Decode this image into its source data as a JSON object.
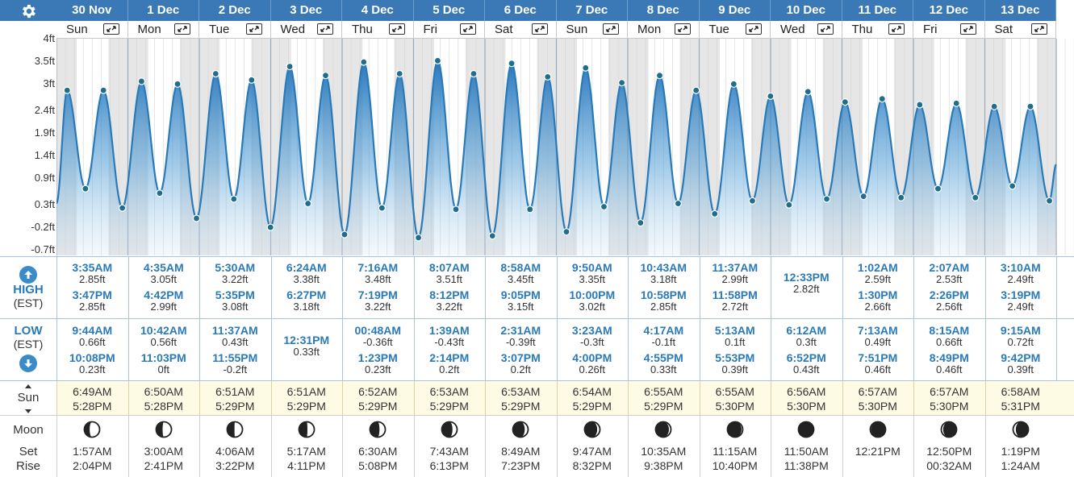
{
  "header": {
    "settings_icon": "gear-icon",
    "expand_icon": "expand-arrows-icon"
  },
  "days": [
    {
      "date": "30 Nov",
      "day": "Sun"
    },
    {
      "date": "1 Dec",
      "day": "Mon"
    },
    {
      "date": "2 Dec",
      "day": "Tue"
    },
    {
      "date": "3 Dec",
      "day": "Wed"
    },
    {
      "date": "4 Dec",
      "day": "Thu"
    },
    {
      "date": "5 Dec",
      "day": "Fri"
    },
    {
      "date": "6 Dec",
      "day": "Sat"
    },
    {
      "date": "7 Dec",
      "day": "Sun"
    },
    {
      "date": "8 Dec",
      "day": "Mon"
    },
    {
      "date": "9 Dec",
      "day": "Tue"
    },
    {
      "date": "10 Dec",
      "day": "Wed"
    },
    {
      "date": "11 Dec",
      "day": "Thu"
    },
    {
      "date": "12 Dec",
      "day": "Fri"
    },
    {
      "date": "13 Dec",
      "day": "Sat"
    }
  ],
  "chart_data": {
    "type": "area",
    "ylabel": "",
    "y_ticks": [
      "4ft",
      "3.5ft",
      "3ft",
      "2.4ft",
      "1.9ft",
      "1.4ft",
      "0.9ft",
      "0.3ft",
      "-0.2ft",
      "-0.7ft"
    ],
    "ylim": [
      -0.7,
      4.0
    ],
    "x_range_days": [
      0,
      14
    ],
    "series": [
      {
        "points": [
          {
            "day": 0,
            "t": "00:00",
            "h": 0.33
          },
          {
            "day": 0,
            "t": "03:35",
            "h": 2.85
          },
          {
            "day": 0,
            "t": "09:44",
            "h": 0.66
          },
          {
            "day": 0,
            "t": "15:47",
            "h": 2.85
          },
          {
            "day": 0,
            "t": "22:08",
            "h": 0.23
          },
          {
            "day": 1,
            "t": "04:35",
            "h": 3.05
          },
          {
            "day": 1,
            "t": "10:42",
            "h": 0.56
          },
          {
            "day": 1,
            "t": "16:42",
            "h": 2.99
          },
          {
            "day": 1,
            "t": "23:03",
            "h": 0.0
          },
          {
            "day": 2,
            "t": "05:30",
            "h": 3.22
          },
          {
            "day": 2,
            "t": "11:37",
            "h": 0.43
          },
          {
            "day": 2,
            "t": "17:35",
            "h": 3.08
          },
          {
            "day": 2,
            "t": "23:55",
            "h": -0.2
          },
          {
            "day": 3,
            "t": "06:24",
            "h": 3.38
          },
          {
            "day": 3,
            "t": "12:31",
            "h": 0.33
          },
          {
            "day": 3,
            "t": "18:27",
            "h": 3.18
          },
          {
            "day": 4,
            "t": "00:48",
            "h": -0.36
          },
          {
            "day": 4,
            "t": "07:16",
            "h": 3.48
          },
          {
            "day": 4,
            "t": "13:23",
            "h": 0.23
          },
          {
            "day": 4,
            "t": "19:19",
            "h": 3.22
          },
          {
            "day": 5,
            "t": "01:39",
            "h": -0.43
          },
          {
            "day": 5,
            "t": "08:07",
            "h": 3.51
          },
          {
            "day": 5,
            "t": "14:14",
            "h": 0.2
          },
          {
            "day": 5,
            "t": "20:12",
            "h": 3.22
          },
          {
            "day": 6,
            "t": "02:31",
            "h": -0.39
          },
          {
            "day": 6,
            "t": "08:58",
            "h": 3.45
          },
          {
            "day": 6,
            "t": "15:07",
            "h": 0.2
          },
          {
            "day": 6,
            "t": "21:05",
            "h": 3.15
          },
          {
            "day": 7,
            "t": "03:23",
            "h": -0.3
          },
          {
            "day": 7,
            "t": "09:50",
            "h": 3.35
          },
          {
            "day": 7,
            "t": "16:00",
            "h": 0.26
          },
          {
            "day": 7,
            "t": "22:00",
            "h": 3.02
          },
          {
            "day": 8,
            "t": "04:17",
            "h": -0.1
          },
          {
            "day": 8,
            "t": "10:43",
            "h": 3.18
          },
          {
            "day": 8,
            "t": "16:55",
            "h": 0.33
          },
          {
            "day": 8,
            "t": "22:58",
            "h": 2.85
          },
          {
            "day": 9,
            "t": "05:13",
            "h": 0.1
          },
          {
            "day": 9,
            "t": "11:37",
            "h": 2.99
          },
          {
            "day": 9,
            "t": "17:53",
            "h": 0.39
          },
          {
            "day": 9,
            "t": "23:58",
            "h": 2.72
          },
          {
            "day": 10,
            "t": "06:12",
            "h": 0.3
          },
          {
            "day": 10,
            "t": "12:33",
            "h": 2.82
          },
          {
            "day": 10,
            "t": "18:52",
            "h": 0.43
          },
          {
            "day": 11,
            "t": "01:02",
            "h": 2.59
          },
          {
            "day": 11,
            "t": "07:13",
            "h": 0.49
          },
          {
            "day": 11,
            "t": "13:30",
            "h": 2.66
          },
          {
            "day": 11,
            "t": "19:51",
            "h": 0.46
          },
          {
            "day": 12,
            "t": "02:07",
            "h": 2.53
          },
          {
            "day": 12,
            "t": "08:15",
            "h": 0.66
          },
          {
            "day": 12,
            "t": "14:26",
            "h": 2.56
          },
          {
            "day": 12,
            "t": "20:49",
            "h": 0.46
          },
          {
            "day": 13,
            "t": "03:10",
            "h": 2.49
          },
          {
            "day": 13,
            "t": "09:15",
            "h": 0.72
          },
          {
            "day": 13,
            "t": "15:19",
            "h": 2.49
          },
          {
            "day": 13,
            "t": "21:42",
            "h": 0.39
          },
          {
            "day": 14,
            "t": "00:00",
            "h": 1.2
          }
        ]
      }
    ],
    "line_color": "#2a7ab8",
    "point_color": "#1f6e8e"
  },
  "high_row": {
    "label": "HIGH",
    "tz": "(EST)",
    "icon": "arrow-up-icon"
  },
  "low_row": {
    "label": "LOW",
    "tz": "(EST)",
    "icon": "arrow-down-icon"
  },
  "highs": [
    [
      {
        "time": "3:35AM",
        "height": "2.85ft"
      },
      {
        "time": "3:47PM",
        "height": "2.85ft"
      }
    ],
    [
      {
        "time": "4:35AM",
        "height": "3.05ft"
      },
      {
        "time": "4:42PM",
        "height": "2.99ft"
      }
    ],
    [
      {
        "time": "5:30AM",
        "height": "3.22ft"
      },
      {
        "time": "5:35PM",
        "height": "3.08ft"
      }
    ],
    [
      {
        "time": "6:24AM",
        "height": "3.38ft"
      },
      {
        "time": "6:27PM",
        "height": "3.18ft"
      }
    ],
    [
      {
        "time": "7:16AM",
        "height": "3.48ft"
      },
      {
        "time": "7:19PM",
        "height": "3.22ft"
      }
    ],
    [
      {
        "time": "8:07AM",
        "height": "3.51ft"
      },
      {
        "time": "8:12PM",
        "height": "3.22ft"
      }
    ],
    [
      {
        "time": "8:58AM",
        "height": "3.45ft"
      },
      {
        "time": "9:05PM",
        "height": "3.15ft"
      }
    ],
    [
      {
        "time": "9:50AM",
        "height": "3.35ft"
      },
      {
        "time": "10:00PM",
        "height": "3.02ft"
      }
    ],
    [
      {
        "time": "10:43AM",
        "height": "3.18ft"
      },
      {
        "time": "10:58PM",
        "height": "2.85ft"
      }
    ],
    [
      {
        "time": "11:37AM",
        "height": "2.99ft"
      },
      {
        "time": "11:58PM",
        "height": "2.72ft"
      }
    ],
    [
      {
        "time": "12:33PM",
        "height": "2.82ft"
      }
    ],
    [
      {
        "time": "1:02AM",
        "height": "2.59ft"
      },
      {
        "time": "1:30PM",
        "height": "2.66ft"
      }
    ],
    [
      {
        "time": "2:07AM",
        "height": "2.53ft"
      },
      {
        "time": "2:26PM",
        "height": "2.56ft"
      }
    ],
    [
      {
        "time": "3:10AM",
        "height": "2.49ft"
      },
      {
        "time": "3:19PM",
        "height": "2.49ft"
      }
    ]
  ],
  "lows": [
    [
      {
        "time": "9:44AM",
        "height": "0.66ft"
      },
      {
        "time": "10:08PM",
        "height": "0.23ft"
      }
    ],
    [
      {
        "time": "10:42AM",
        "height": "0.56ft"
      },
      {
        "time": "11:03PM",
        "height": "0ft"
      }
    ],
    [
      {
        "time": "11:37AM",
        "height": "0.43ft"
      },
      {
        "time": "11:55PM",
        "height": "-0.2ft"
      }
    ],
    [
      {
        "time": "12:31PM",
        "height": "0.33ft"
      }
    ],
    [
      {
        "time": "00:48AM",
        "height": "-0.36ft"
      },
      {
        "time": "1:23PM",
        "height": "0.23ft"
      }
    ],
    [
      {
        "time": "1:39AM",
        "height": "-0.43ft"
      },
      {
        "time": "2:14PM",
        "height": "0.2ft"
      }
    ],
    [
      {
        "time": "2:31AM",
        "height": "-0.39ft"
      },
      {
        "time": "3:07PM",
        "height": "0.2ft"
      }
    ],
    [
      {
        "time": "3:23AM",
        "height": "-0.3ft"
      },
      {
        "time": "4:00PM",
        "height": "0.26ft"
      }
    ],
    [
      {
        "time": "4:17AM",
        "height": "-0.1ft"
      },
      {
        "time": "4:55PM",
        "height": "0.33ft"
      }
    ],
    [
      {
        "time": "5:13AM",
        "height": "0.1ft"
      },
      {
        "time": "5:53PM",
        "height": "0.39ft"
      }
    ],
    [
      {
        "time": "6:12AM",
        "height": "0.3ft"
      },
      {
        "time": "6:52PM",
        "height": "0.43ft"
      }
    ],
    [
      {
        "time": "7:13AM",
        "height": "0.49ft"
      },
      {
        "time": "7:51PM",
        "height": "0.46ft"
      }
    ],
    [
      {
        "time": "8:15AM",
        "height": "0.66ft"
      },
      {
        "time": "8:49PM",
        "height": "0.46ft"
      }
    ],
    [
      {
        "time": "9:15AM",
        "height": "0.72ft"
      },
      {
        "time": "9:42PM",
        "height": "0.39ft"
      }
    ]
  ],
  "sun": {
    "label": "Sun",
    "icon": "sunrise-sunset-arrows-icon",
    "times": [
      [
        "6:49AM",
        "5:28PM"
      ],
      [
        "6:50AM",
        "5:28PM"
      ],
      [
        "6:51AM",
        "5:29PM"
      ],
      [
        "6:51AM",
        "5:29PM"
      ],
      [
        "6:52AM",
        "5:29PM"
      ],
      [
        "6:53AM",
        "5:29PM"
      ],
      [
        "6:53AM",
        "5:29PM"
      ],
      [
        "6:54AM",
        "5:29PM"
      ],
      [
        "6:55AM",
        "5:29PM"
      ],
      [
        "6:55AM",
        "5:30PM"
      ],
      [
        "6:56AM",
        "5:30PM"
      ],
      [
        "6:57AM",
        "5:30PM"
      ],
      [
        "6:57AM",
        "5:30PM"
      ],
      [
        "6:58AM",
        "5:31PM"
      ]
    ]
  },
  "moon": {
    "label": "Moon",
    "set_label": "Set",
    "rise_label": "Rise",
    "phases": [
      0.35,
      0.42,
      0.48,
      0.55,
      0.62,
      0.7,
      0.78,
      0.82,
      0.87,
      0.92,
      0.97,
      1.05,
      1.12,
      1.18
    ],
    "set": [
      "1:57AM",
      "3:00AM",
      "4:06AM",
      "5:17AM",
      "6:30AM",
      "7:43AM",
      "8:49AM",
      "9:47AM",
      "10:35AM",
      "11:15AM",
      "11:50AM",
      "12:21PM",
      "12:50PM",
      "1:19PM"
    ],
    "rise": [
      "2:04PM",
      "2:41PM",
      "3:22PM",
      "4:11PM",
      "5:08PM",
      "6:13PM",
      "7:23PM",
      "8:32PM",
      "9:38PM",
      "10:40PM",
      "11:38PM",
      "",
      "00:32AM",
      "1:24AM"
    ]
  }
}
